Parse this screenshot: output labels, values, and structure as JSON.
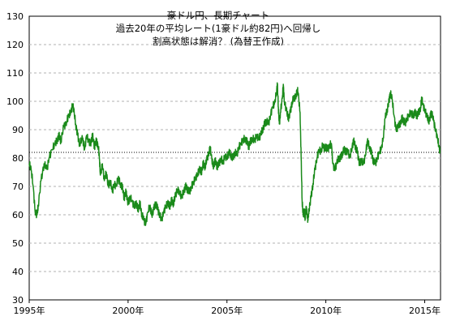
{
  "chart_data": {
    "type": "line",
    "title_lines": [
      "豪ドル円、長期チャート",
      "過去20年の平均レート(1豪ドル約82円)へ回帰し",
      "割高状態は解消？ (為替王作成)"
    ],
    "xlabel": "",
    "ylabel": "",
    "x_range": [
      1995.0,
      2015.8
    ],
    "ylim": [
      30,
      130
    ],
    "y_ticks": [
      30,
      40,
      50,
      60,
      70,
      80,
      90,
      100,
      110,
      120,
      130
    ],
    "x_ticks": [
      {
        "year": 1995,
        "label": "1995年"
      },
      {
        "year": 2000,
        "label": "2000年"
      },
      {
        "year": 2005,
        "label": "2005年"
      },
      {
        "year": 2010,
        "label": "2010年"
      },
      {
        "year": 2015,
        "label": "2015年"
      }
    ],
    "grid": "horizontal-dashed",
    "reference_line": {
      "value": 82,
      "style": "dotted"
    },
    "series": [
      {
        "name": "",
        "color": "#1a8a1a",
        "points": [
          [
            1995.0,
            78
          ],
          [
            1995.1,
            76
          ],
          [
            1995.2,
            70
          ],
          [
            1995.3,
            61
          ],
          [
            1995.4,
            60
          ],
          [
            1995.45,
            63
          ],
          [
            1995.6,
            72
          ],
          [
            1995.75,
            78
          ],
          [
            1995.9,
            76
          ],
          [
            1996.0,
            80
          ],
          [
            1996.15,
            83
          ],
          [
            1996.3,
            85
          ],
          [
            1996.4,
            86
          ],
          [
            1996.5,
            88
          ],
          [
            1996.6,
            86
          ],
          [
            1996.75,
            91
          ],
          [
            1996.9,
            93
          ],
          [
            1997.0,
            95
          ],
          [
            1997.1,
            96
          ],
          [
            1997.2,
            99
          ],
          [
            1997.25,
            97
          ],
          [
            1997.35,
            92
          ],
          [
            1997.45,
            88
          ],
          [
            1997.55,
            85
          ],
          [
            1997.7,
            87
          ],
          [
            1997.8,
            83
          ],
          [
            1997.9,
            88
          ],
          [
            1998.0,
            86
          ],
          [
            1998.1,
            85
          ],
          [
            1998.2,
            88
          ],
          [
            1998.3,
            84
          ],
          [
            1998.4,
            86
          ],
          [
            1998.5,
            84
          ],
          [
            1998.55,
            80
          ],
          [
            1998.6,
            74
          ],
          [
            1998.7,
            78
          ],
          [
            1998.8,
            72
          ],
          [
            1998.9,
            75
          ],
          [
            1999.0,
            70
          ],
          [
            1999.1,
            72
          ],
          [
            1999.2,
            68
          ],
          [
            1999.3,
            71
          ],
          [
            1999.4,
            70
          ],
          [
            1999.5,
            73
          ],
          [
            1999.6,
            71
          ],
          [
            1999.7,
            70
          ],
          [
            1999.8,
            66
          ],
          [
            1999.9,
            68
          ],
          [
            2000.0,
            64
          ],
          [
            2000.1,
            66
          ],
          [
            2000.2,
            65
          ],
          [
            2000.3,
            63
          ],
          [
            2000.4,
            64
          ],
          [
            2000.5,
            62
          ],
          [
            2000.6,
            64
          ],
          [
            2000.7,
            60
          ],
          [
            2000.8,
            58
          ],
          [
            2000.9,
            57
          ],
          [
            2001.0,
            61
          ],
          [
            2001.1,
            63
          ],
          [
            2001.2,
            60
          ],
          [
            2001.3,
            62
          ],
          [
            2001.4,
            64
          ],
          [
            2001.5,
            62
          ],
          [
            2001.6,
            60
          ],
          [
            2001.7,
            58
          ],
          [
            2001.8,
            61
          ],
          [
            2001.9,
            63
          ],
          [
            2002.0,
            64
          ],
          [
            2002.1,
            63
          ],
          [
            2002.2,
            65
          ],
          [
            2002.3,
            64
          ],
          [
            2002.4,
            67
          ],
          [
            2002.5,
            69
          ],
          [
            2002.6,
            68
          ],
          [
            2002.7,
            66
          ],
          [
            2002.8,
            68
          ],
          [
            2002.9,
            70
          ],
          [
            2003.0,
            69
          ],
          [
            2003.1,
            68
          ],
          [
            2003.2,
            70
          ],
          [
            2003.3,
            71
          ],
          [
            2003.4,
            73
          ],
          [
            2003.5,
            74
          ],
          [
            2003.6,
            76
          ],
          [
            2003.7,
            75
          ],
          [
            2003.8,
            78
          ],
          [
            2003.9,
            77
          ],
          [
            2004.0,
            80
          ],
          [
            2004.1,
            82
          ],
          [
            2004.15,
            84
          ],
          [
            2004.2,
            81
          ],
          [
            2004.3,
            77
          ],
          [
            2004.4,
            79
          ],
          [
            2004.5,
            77
          ],
          [
            2004.6,
            78
          ],
          [
            2004.7,
            80
          ],
          [
            2004.8,
            78
          ],
          [
            2004.9,
            81
          ],
          [
            2005.0,
            80
          ],
          [
            2005.1,
            82
          ],
          [
            2005.2,
            81
          ],
          [
            2005.3,
            80
          ],
          [
            2005.4,
            82
          ],
          [
            2005.5,
            81
          ],
          [
            2005.6,
            84
          ],
          [
            2005.7,
            85
          ],
          [
            2005.8,
            86
          ],
          [
            2005.9,
            87
          ],
          [
            2006.0,
            86
          ],
          [
            2006.1,
            84
          ],
          [
            2006.2,
            86
          ],
          [
            2006.3,
            87
          ],
          [
            2006.4,
            86
          ],
          [
            2006.5,
            88
          ],
          [
            2006.6,
            87
          ],
          [
            2006.7,
            88
          ],
          [
            2006.8,
            90
          ],
          [
            2006.9,
            92
          ],
          [
            2007.0,
            93
          ],
          [
            2007.1,
            92
          ],
          [
            2007.2,
            95
          ],
          [
            2007.3,
            98
          ],
          [
            2007.4,
            99
          ],
          [
            2007.5,
            103
          ],
          [
            2007.55,
            106
          ],
          [
            2007.6,
            98
          ],
          [
            2007.65,
            92
          ],
          [
            2007.7,
            96
          ],
          [
            2007.8,
            101
          ],
          [
            2007.85,
            106
          ],
          [
            2007.9,
            100
          ],
          [
            2008.0,
            97
          ],
          [
            2008.1,
            94
          ],
          [
            2008.2,
            96
          ],
          [
            2008.3,
            100
          ],
          [
            2008.4,
            101
          ],
          [
            2008.5,
            102
          ],
          [
            2008.55,
            104
          ],
          [
            2008.6,
            103
          ],
          [
            2008.7,
            96
          ],
          [
            2008.75,
            80
          ],
          [
            2008.8,
            65
          ],
          [
            2008.85,
            60
          ],
          [
            2008.9,
            62
          ],
          [
            2008.95,
            58
          ],
          [
            2009.0,
            63
          ],
          [
            2009.05,
            60
          ],
          [
            2009.1,
            58
          ],
          [
            2009.15,
            62
          ],
          [
            2009.25,
            66
          ],
          [
            2009.35,
            71
          ],
          [
            2009.45,
            76
          ],
          [
            2009.55,
            80
          ],
          [
            2009.65,
            83
          ],
          [
            2009.75,
            82
          ],
          [
            2009.85,
            85
          ],
          [
            2009.95,
            83
          ],
          [
            2010.0,
            84
          ],
          [
            2010.1,
            83
          ],
          [
            2010.2,
            85
          ],
          [
            2010.3,
            84
          ],
          [
            2010.35,
            78
          ],
          [
            2010.45,
            76
          ],
          [
            2010.55,
            78
          ],
          [
            2010.65,
            80
          ],
          [
            2010.75,
            80
          ],
          [
            2010.85,
            82
          ],
          [
            2010.95,
            83
          ],
          [
            2011.0,
            82
          ],
          [
            2011.1,
            83
          ],
          [
            2011.2,
            80
          ],
          [
            2011.3,
            83
          ],
          [
            2011.4,
            86
          ],
          [
            2011.5,
            84
          ],
          [
            2011.6,
            82
          ],
          [
            2011.7,
            78
          ],
          [
            2011.8,
            79
          ],
          [
            2011.9,
            78
          ],
          [
            2012.0,
            81
          ],
          [
            2012.1,
            86
          ],
          [
            2012.2,
            84
          ],
          [
            2012.3,
            82
          ],
          [
            2012.4,
            79
          ],
          [
            2012.5,
            78
          ],
          [
            2012.6,
            80
          ],
          [
            2012.7,
            82
          ],
          [
            2012.8,
            83
          ],
          [
            2012.9,
            87
          ],
          [
            2013.0,
            94
          ],
          [
            2013.1,
            97
          ],
          [
            2013.2,
            100
          ],
          [
            2013.25,
            103
          ],
          [
            2013.35,
            101
          ],
          [
            2013.45,
            95
          ],
          [
            2013.55,
            90
          ],
          [
            2013.65,
            91
          ],
          [
            2013.75,
            92
          ],
          [
            2013.85,
            94
          ],
          [
            2013.95,
            93
          ],
          [
            2014.0,
            92
          ],
          [
            2014.1,
            94
          ],
          [
            2014.2,
            95
          ],
          [
            2014.3,
            96
          ],
          [
            2014.4,
            95
          ],
          [
            2014.5,
            96
          ],
          [
            2014.6,
            95
          ],
          [
            2014.7,
            96
          ],
          [
            2014.8,
            98
          ],
          [
            2014.85,
            101
          ],
          [
            2014.9,
            99
          ],
          [
            2015.0,
            97
          ],
          [
            2015.1,
            95
          ],
          [
            2015.2,
            93
          ],
          [
            2015.3,
            95
          ],
          [
            2015.35,
            96
          ],
          [
            2015.45,
            93
          ],
          [
            2015.55,
            90
          ],
          [
            2015.65,
            87
          ],
          [
            2015.72,
            84
          ],
          [
            2015.78,
            82
          ]
        ]
      }
    ]
  }
}
